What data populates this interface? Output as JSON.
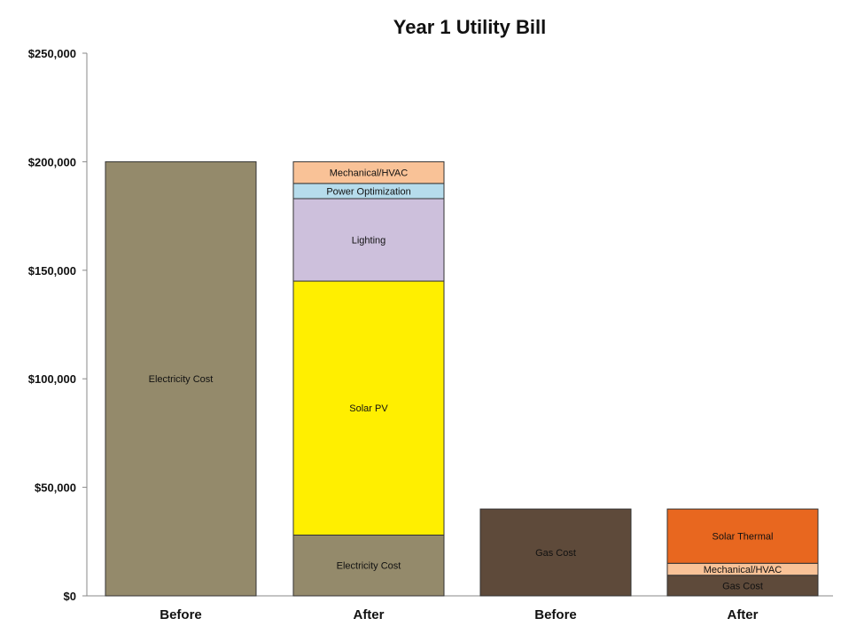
{
  "chart_data": {
    "type": "bar",
    "stacked": true,
    "title": "Year 1 Utility Bill",
    "xlabel": "",
    "ylabel": "",
    "ylim": [
      0,
      250000
    ],
    "yticks": [
      "$0",
      "$50,000",
      "$100,000",
      "$150,000",
      "$200,000",
      "$250,000"
    ],
    "ytick_values": [
      0,
      50000,
      100000,
      150000,
      200000,
      250000
    ],
    "grid": false,
    "categories": [
      "Before",
      "After",
      "Before",
      "After"
    ],
    "bars": [
      {
        "category": "Before",
        "segments": [
          {
            "label": "Electricity Cost",
            "value": 200000,
            "color": "#948a6b"
          }
        ]
      },
      {
        "category": "After",
        "segments": [
          {
            "label": "Electricity Cost",
            "value": 28000,
            "color": "#948a6b"
          },
          {
            "label": "Solar PV",
            "value": 117000,
            "color": "#ffef00"
          },
          {
            "label": "Lighting",
            "value": 38000,
            "color": "#cdc0dc"
          },
          {
            "label": "Power Optimization",
            "value": 7000,
            "color": "#b6dcec"
          },
          {
            "label": "Mechanical/HVAC",
            "value": 10000,
            "color": "#f9c297"
          }
        ]
      },
      {
        "category": "Before",
        "segments": [
          {
            "label": "Gas Cost",
            "value": 40000,
            "color": "#5e4a3a"
          }
        ]
      },
      {
        "category": "After",
        "segments": [
          {
            "label": "Gas Cost",
            "value": 9500,
            "color": "#5e4a3a"
          },
          {
            "label": "Mechanical/HVAC",
            "value": 5500,
            "color": "#f9c297"
          },
          {
            "label": "Solar Thermal",
            "value": 25000,
            "color": "#e8671f"
          }
        ]
      }
    ]
  }
}
